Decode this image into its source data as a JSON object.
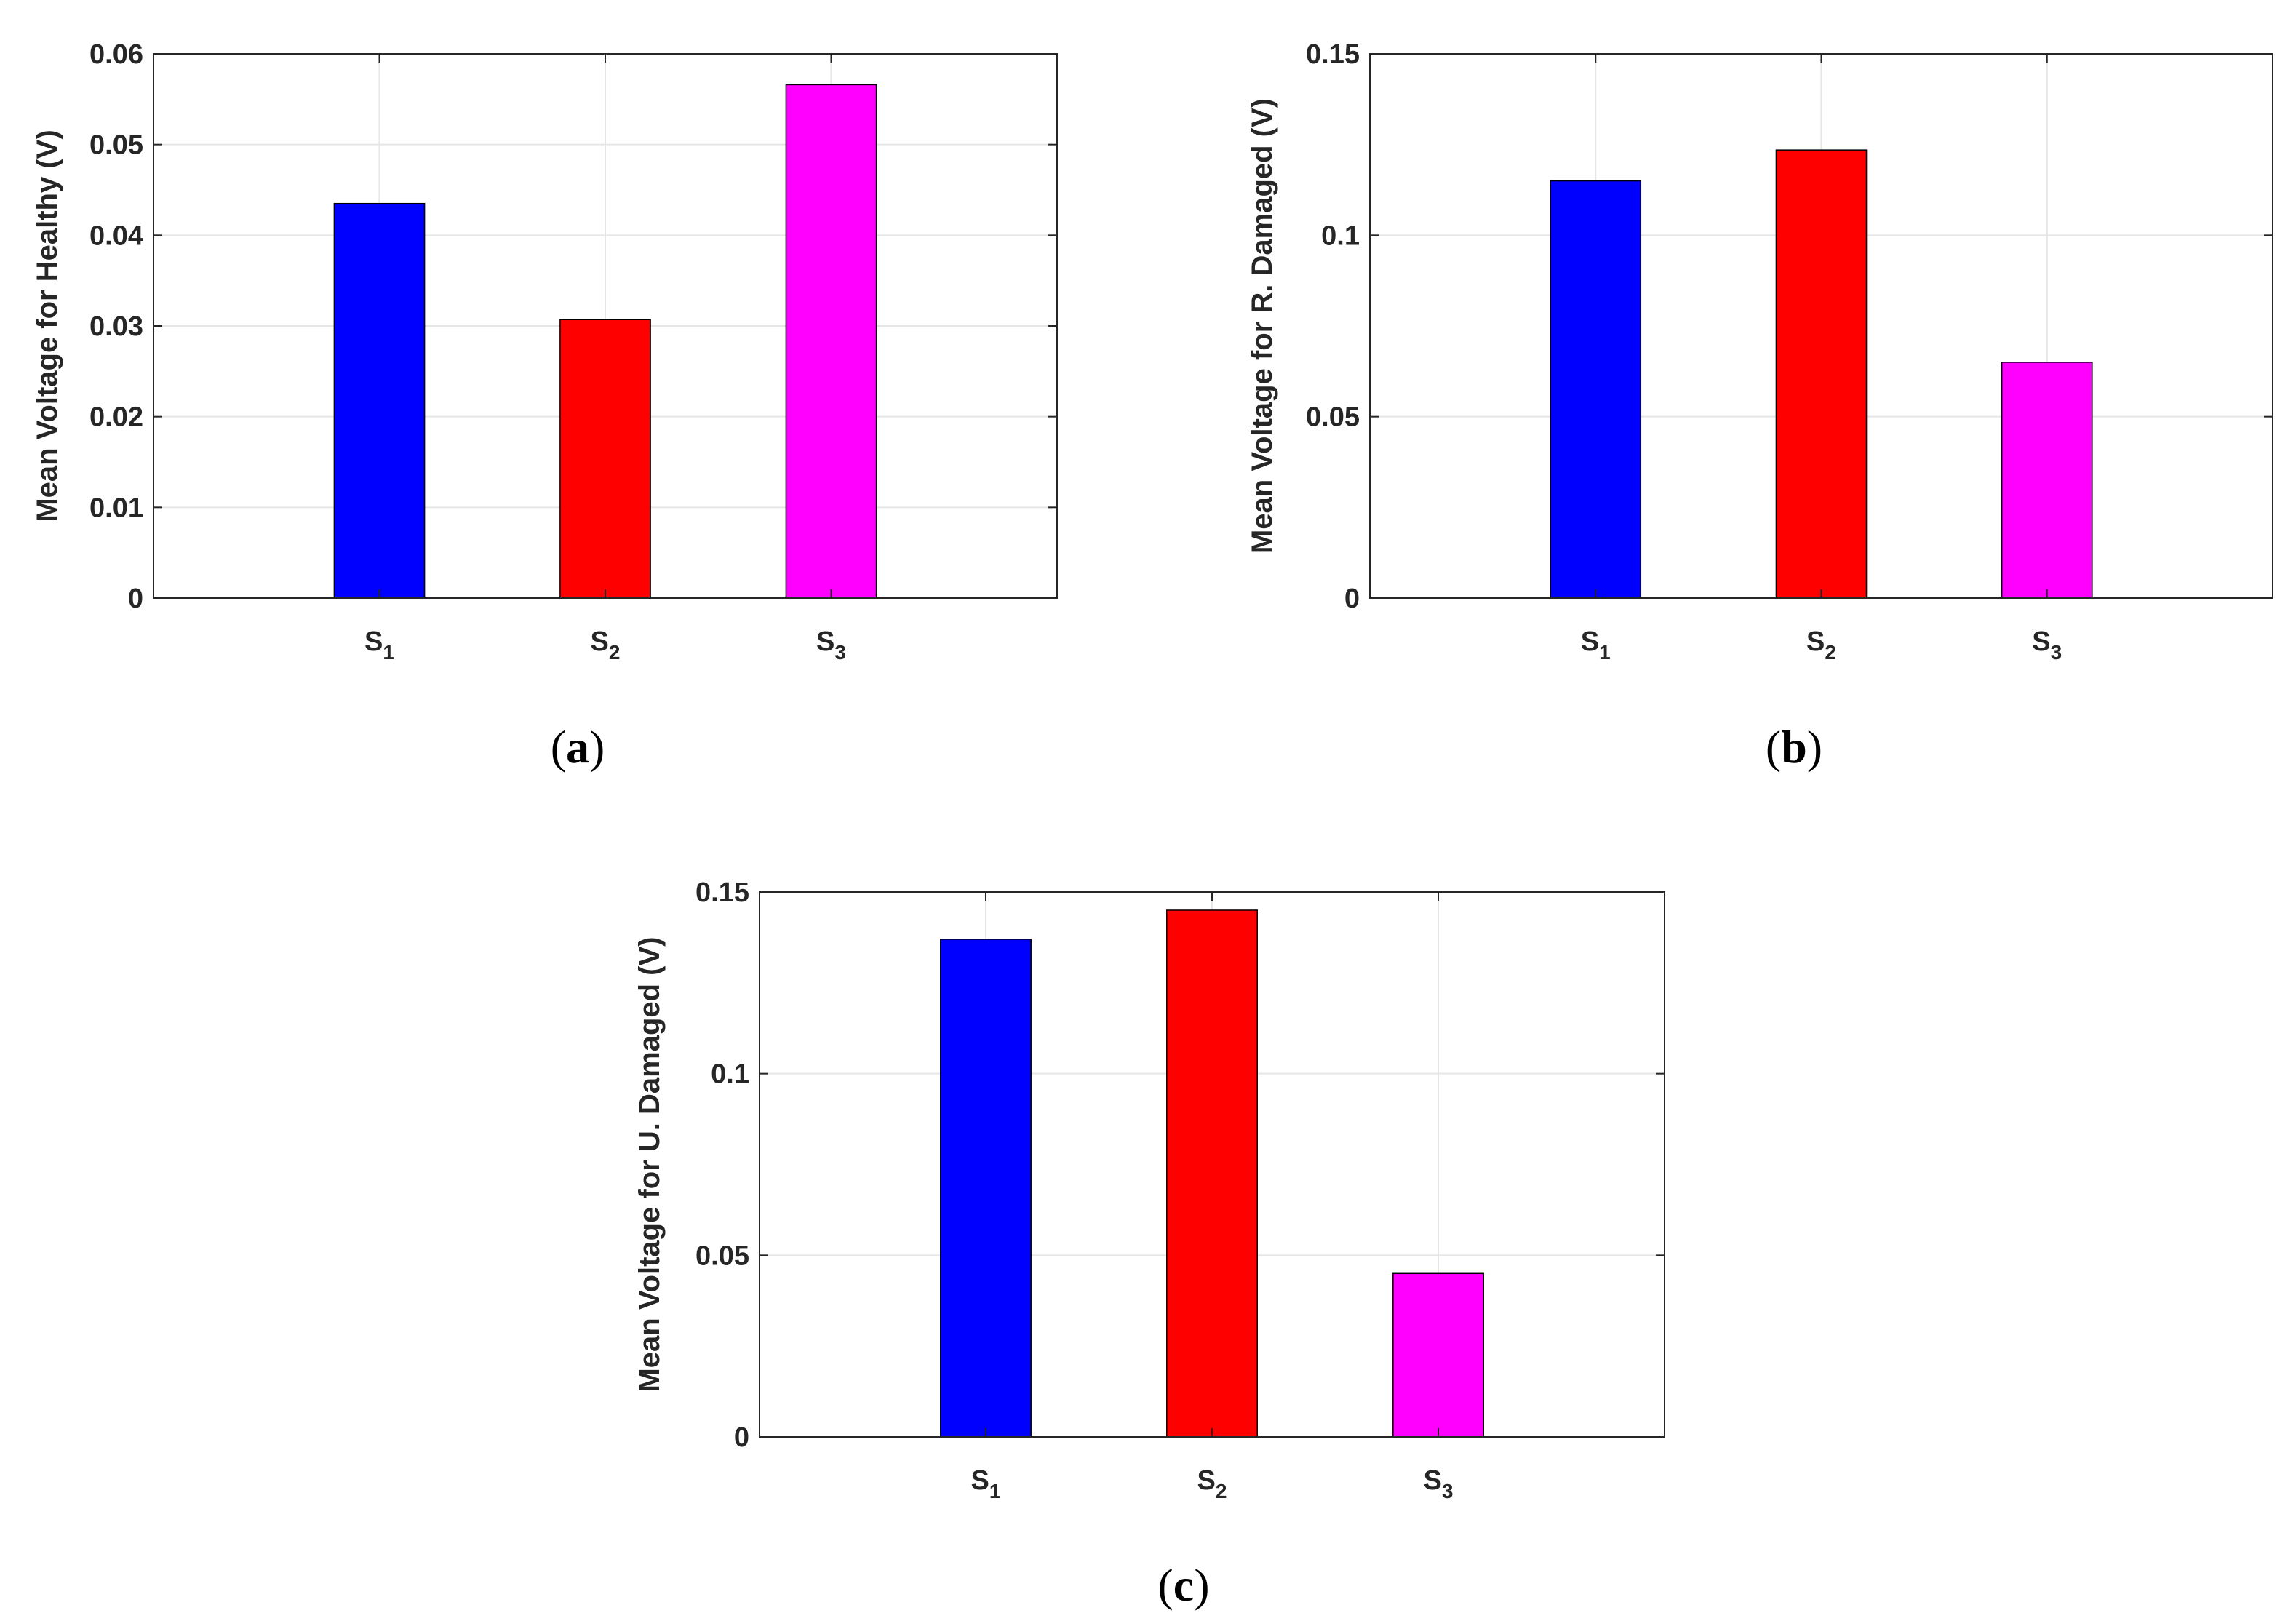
{
  "chart_data": [
    {
      "type": "bar",
      "panel": "a",
      "categories": [
        "S1",
        "S2",
        "S3"
      ],
      "category_base": "S",
      "category_subscripts": [
        "1",
        "2",
        "3"
      ],
      "values": [
        0.0435,
        0.0307,
        0.0566
      ],
      "colors": [
        "#0000ff",
        "#ff0000",
        "#ff00ff"
      ],
      "ylabel": "Mean Voltage for Healthy (V)",
      "ylim": [
        0,
        0.06
      ],
      "yticks": [
        "0",
        "0.01",
        "0.02",
        "0.03",
        "0.04",
        "0.05",
        "0.06"
      ],
      "ytick_values": [
        0,
        0.01,
        0.02,
        0.03,
        0.04,
        0.05,
        0.06
      ],
      "grid": true,
      "caption_letter": "a"
    },
    {
      "type": "bar",
      "panel": "b",
      "categories": [
        "S1",
        "S2",
        "S3"
      ],
      "category_base": "S",
      "category_subscripts": [
        "1",
        "2",
        "3"
      ],
      "values": [
        0.115,
        0.1235,
        0.065
      ],
      "colors": [
        "#0000ff",
        "#ff0000",
        "#ff00ff"
      ],
      "ylabel": "Mean Voltage for R. Damaged (V)",
      "ylim": [
        0,
        0.15
      ],
      "yticks": [
        "0",
        "0.05",
        "0.1",
        "0.15"
      ],
      "ytick_values": [
        0,
        0.05,
        0.1,
        0.15
      ],
      "grid": true,
      "caption_letter": "b"
    },
    {
      "type": "bar",
      "panel": "c",
      "categories": [
        "S1",
        "S2",
        "S3"
      ],
      "category_base": "S",
      "category_subscripts": [
        "1",
        "2",
        "3"
      ],
      "values": [
        0.137,
        0.145,
        0.045
      ],
      "colors": [
        "#0000ff",
        "#ff0000",
        "#ff00ff"
      ],
      "ylabel": "Mean Voltage for U. Damaged (V)",
      "ylim": [
        0,
        0.15
      ],
      "yticks": [
        "0",
        "0.05",
        "0.1",
        "0.15"
      ],
      "ytick_values": [
        0,
        0.05,
        0.1,
        0.15
      ],
      "grid": true,
      "caption_letter": "c"
    }
  ]
}
